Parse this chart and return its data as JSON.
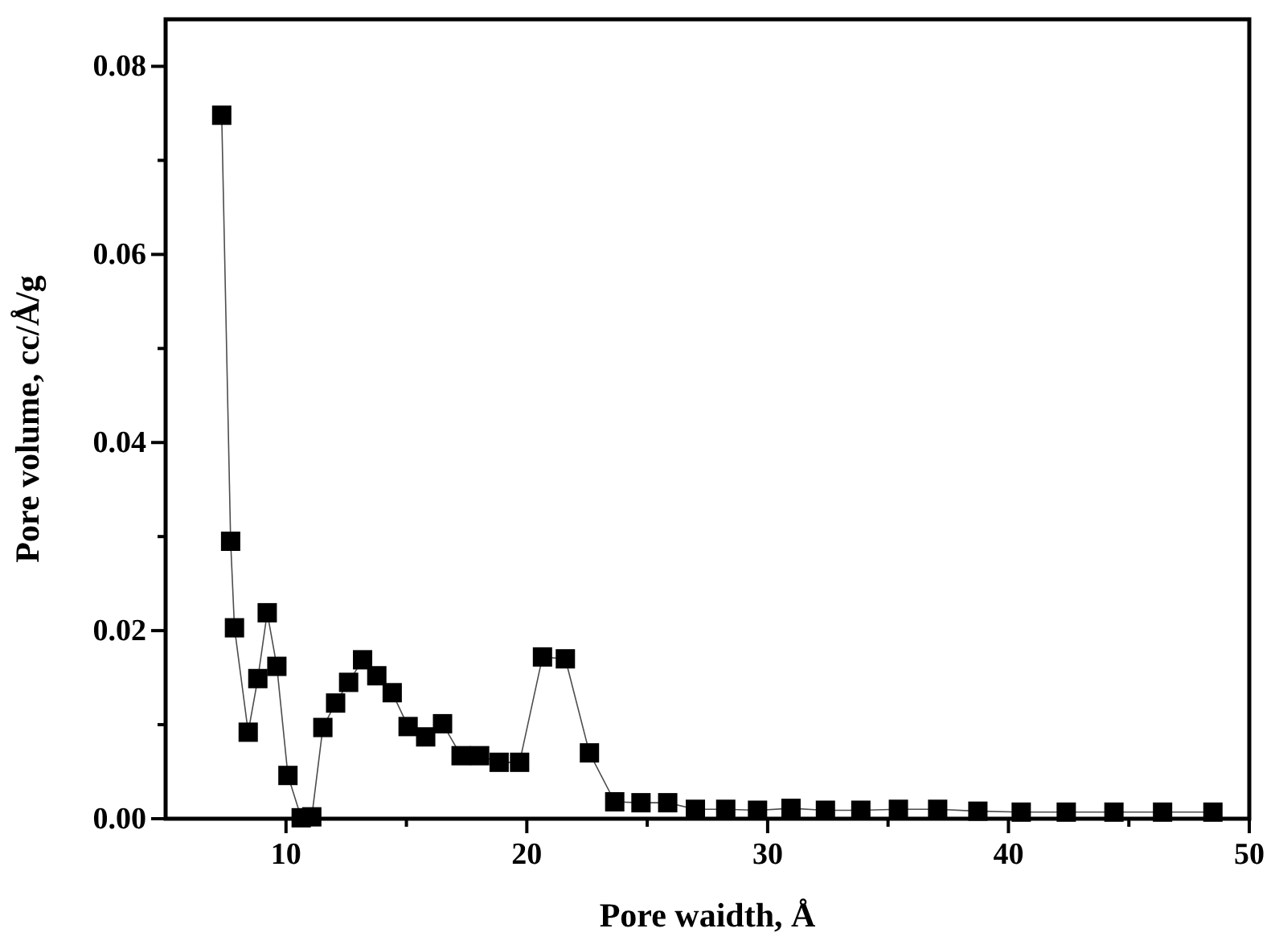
{
  "chart_data": {
    "type": "line",
    "xlabel": "Pore waidth, Å",
    "ylabel": "Pore volume, cc/Å/g",
    "x": [
      7.33,
      7.7,
      7.86,
      8.43,
      8.83,
      9.22,
      9.62,
      10.08,
      10.63,
      11.07,
      11.53,
      12.06,
      12.6,
      13.18,
      13.77,
      14.41,
      15.07,
      15.8,
      16.5,
      17.27,
      18.04,
      18.85,
      19.7,
      20.65,
      21.6,
      22.6,
      23.65,
      24.74,
      25.85,
      27.0,
      28.26,
      29.58,
      30.97,
      32.4,
      33.87,
      35.43,
      37.06,
      38.73,
      40.53,
      42.4,
      44.38,
      46.4,
      48.49
    ],
    "series": [
      {
        "color": "#000000",
        "values": [
          0.0748,
          0.0295,
          0.0203,
          0.0092,
          0.0149,
          0.0219,
          0.0162,
          0.0046,
          0.0001,
          0.0002,
          0.0097,
          0.0123,
          0.0145,
          0.0169,
          0.0152,
          0.0134,
          0.0098,
          0.0087,
          0.0101,
          0.0067,
          0.0067,
          0.006,
          0.006,
          0.0172,
          0.017,
          0.007,
          0.0018,
          0.0017,
          0.0017,
          0.001,
          0.001,
          0.0009,
          0.0011,
          0.0009,
          0.0009,
          0.001,
          0.001,
          0.0008,
          0.0007,
          0.0007,
          0.0007,
          0.0007,
          0.0007
        ]
      }
    ],
    "xlim": [
      5,
      50
    ],
    "ylim": [
      0,
      0.085
    ],
    "xticks": [
      10,
      {
        "value": 15,
        "label": null
      },
      20,
      {
        "value": 25,
        "label": null
      },
      30,
      {
        "value": 35,
        "label": null
      },
      40,
      {
        "value": 45,
        "label": null
      },
      50
    ],
    "yticks": [
      {
        "value": 0,
        "label": "0.00"
      },
      {
        "value": 0.01,
        "label": null
      },
      {
        "value": 0.02,
        "label": "0.02"
      },
      {
        "value": 0.03,
        "label": null
      },
      {
        "value": 0.04,
        "label": "0.04"
      },
      {
        "value": 0.05,
        "label": null
      },
      {
        "value": 0.06,
        "label": "0.06"
      },
      {
        "value": 0.07,
        "label": null
      },
      {
        "value": 0.08,
        "label": "0.08"
      }
    ],
    "marker": "square",
    "line_style": "solid",
    "grid": false
  }
}
